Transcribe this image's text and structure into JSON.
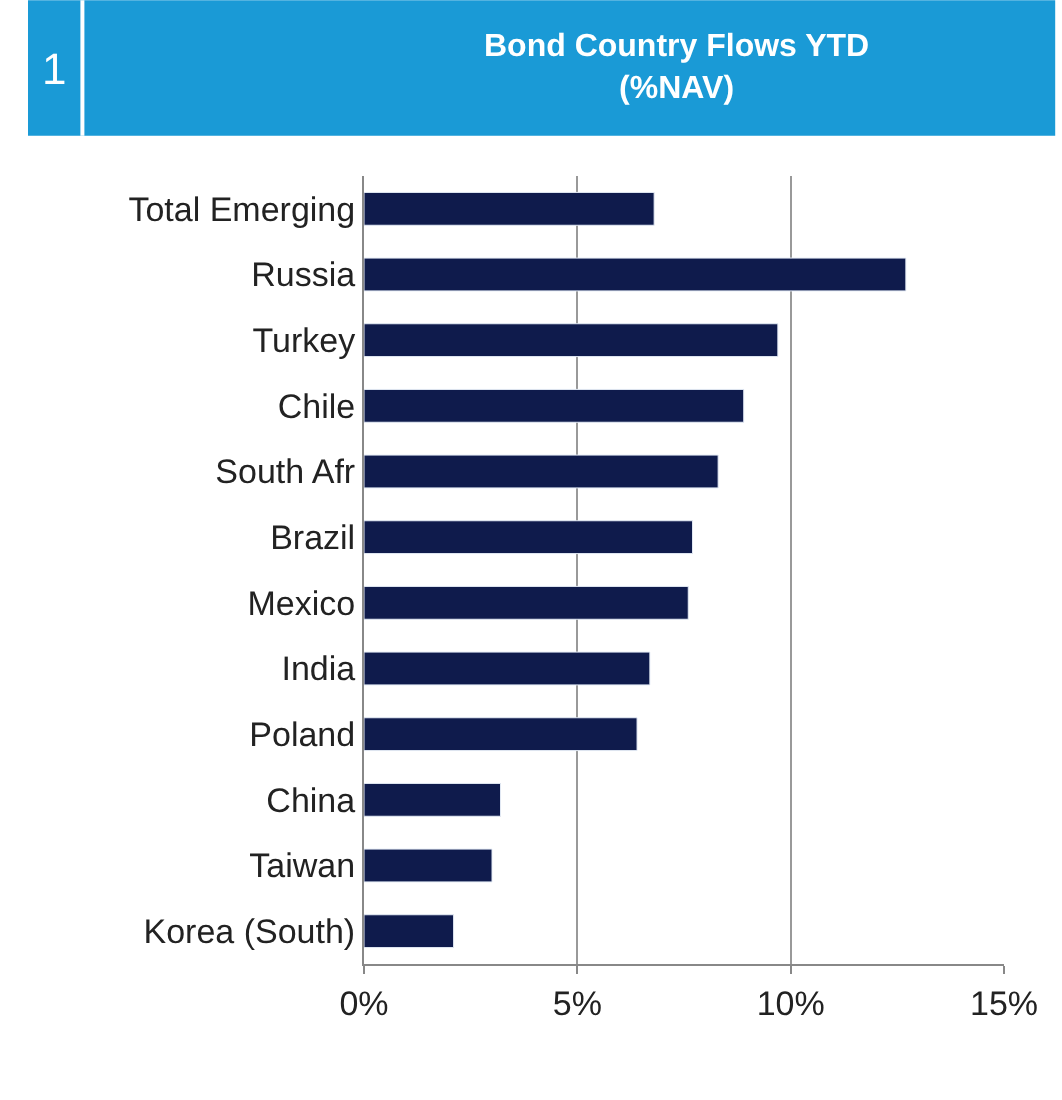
{
  "chart_data": {
    "type": "bar",
    "orientation": "horizontal",
    "title": "Bond Country Flows YTD\n(%NAV)",
    "annotations": [
      "1"
    ],
    "categories": [
      "Total Emerging",
      "Russia",
      "Turkey",
      "Chile",
      "South Afr",
      "Brazil",
      "Mexico",
      "India",
      "Poland",
      "China",
      "Taiwan",
      "Korea (South)"
    ],
    "values": [
      6.8,
      12.7,
      9.7,
      8.9,
      8.3,
      7.7,
      7.6,
      6.7,
      6.4,
      3.2,
      3.0,
      2.1
    ],
    "color": "#0f1b4c",
    "xlim": [
      0,
      15
    ],
    "xticks": [
      {
        "value": 0,
        "label": "0%"
      },
      {
        "value": 5,
        "label": "5%"
      },
      {
        "value": 10,
        "label": "10%"
      },
      {
        "value": 15,
        "label": "15%"
      }
    ],
    "grid": "x",
    "legend": false
  }
}
